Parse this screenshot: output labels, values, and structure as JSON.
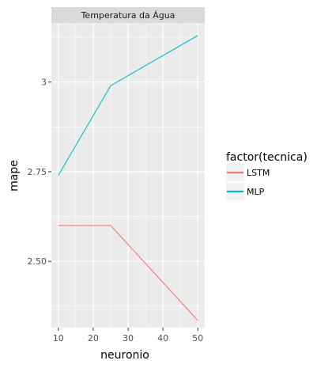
{
  "chart_data": {
    "type": "line",
    "facet_label": "Temperatura da Água",
    "xlabel": "neuronio",
    "ylabel": "mape",
    "x_ticks": [
      10,
      20,
      30,
      40,
      50
    ],
    "y_ticks": [
      2.5,
      2.75,
      3.0
    ],
    "y_tick_labels": [
      "2.50",
      "2.75",
      "3"
    ],
    "xlim": [
      8,
      52
    ],
    "ylim": [
      2.315,
      3.165
    ],
    "grid": true,
    "legend": {
      "title": "factor(tecnica)",
      "position": "right"
    },
    "series": [
      {
        "name": "LSTM",
        "color": "#F8766D",
        "x": [
          10,
          25,
          50
        ],
        "y": [
          2.6,
          2.6,
          2.335
        ]
      },
      {
        "name": "MLP",
        "color": "#00BFC4",
        "x": [
          10,
          25,
          50
        ],
        "y": [
          2.74,
          2.99,
          3.13
        ]
      }
    ]
  }
}
